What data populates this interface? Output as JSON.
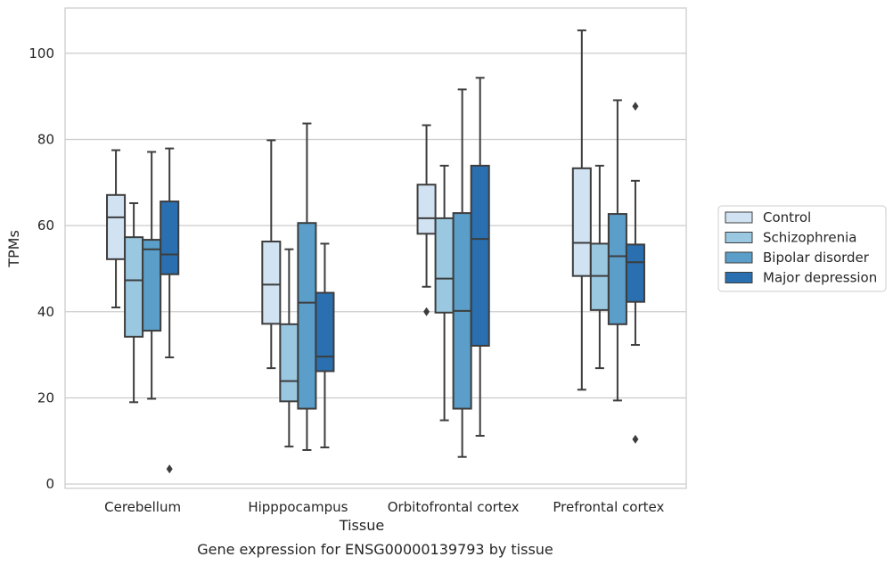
{
  "caption": "Gene expression for ENSG00000139793 by tissue",
  "chart_data": {
    "type": "box",
    "title": "",
    "xlabel": "Tissue",
    "ylabel": "TPMs",
    "ylim": [
      -1,
      110.5
    ],
    "yticks": [
      0,
      20,
      40,
      60,
      80,
      100
    ],
    "grid": true,
    "legend_position": "right",
    "categories": [
      "Cerebellum",
      "Hipppocampus",
      "Orbitofrontal cortex",
      "Prefrontal cortex"
    ],
    "series": [
      {
        "name": "Control",
        "color": "#d1e2f2",
        "boxes": [
          {
            "whisker_low": 41,
            "q1": 52.2,
            "median": 61.9,
            "q3": 67.1,
            "whisker_high": 77.5,
            "outliers": []
          },
          {
            "whisker_low": 26.9,
            "q1": 37.2,
            "median": 46.3,
            "q3": 56.3,
            "whisker_high": 79.8,
            "outliers": []
          },
          {
            "whisker_low": 45.8,
            "q1": 58.1,
            "median": 61.7,
            "q3": 69.5,
            "whisker_high": 83.3,
            "outliers": [
              40
            ]
          },
          {
            "whisker_low": 21.9,
            "q1": 48.3,
            "median": 56.0,
            "q3": 73.3,
            "whisker_high": 105.3,
            "outliers": []
          }
        ]
      },
      {
        "name": "Schizophrenia",
        "color": "#9ac8e0",
        "boxes": [
          {
            "whisker_low": 19.0,
            "q1": 34.2,
            "median": 47.3,
            "q3": 57.3,
            "whisker_high": 65.2,
            "outliers": []
          },
          {
            "whisker_low": 8.7,
            "q1": 19.2,
            "median": 23.9,
            "q3": 37.1,
            "whisker_high": 54.5,
            "outliers": []
          },
          {
            "whisker_low": 14.8,
            "q1": 39.8,
            "median": 47.7,
            "q3": 61.7,
            "whisker_high": 73.9,
            "outliers": []
          },
          {
            "whisker_low": 26.9,
            "q1": 40.4,
            "median": 48.3,
            "q3": 55.8,
            "whisker_high": 73.9,
            "outliers": []
          }
        ]
      },
      {
        "name": "Bipolar disorder",
        "color": "#5a9ec9",
        "boxes": [
          {
            "whisker_low": 19.8,
            "q1": 35.6,
            "median": 54.5,
            "q3": 56.7,
            "whisker_high": 77.1,
            "outliers": []
          },
          {
            "whisker_low": 7.9,
            "q1": 17.5,
            "median": 42.1,
            "q3": 60.6,
            "whisker_high": 83.7,
            "outliers": []
          },
          {
            "whisker_low": 6.3,
            "q1": 17.5,
            "median": 40.2,
            "q3": 62.9,
            "whisker_high": 91.6,
            "outliers": []
          },
          {
            "whisker_low": 19.4,
            "q1": 37.1,
            "median": 52.9,
            "q3": 62.7,
            "whisker_high": 89.1,
            "outliers": []
          }
        ]
      },
      {
        "name": "Major depression",
        "color": "#2a6fb0",
        "boxes": [
          {
            "whisker_low": 29.4,
            "q1": 48.7,
            "median": 53.3,
            "q3": 65.6,
            "whisker_high": 77.9,
            "outliers": [
              3.5
            ]
          },
          {
            "whisker_low": 8.5,
            "q1": 26.2,
            "median": 29.6,
            "q3": 44.4,
            "whisker_high": 55.8,
            "outliers": []
          },
          {
            "whisker_low": 11.2,
            "q1": 32.1,
            "median": 56.9,
            "q3": 73.9,
            "whisker_high": 94.3,
            "outliers": []
          },
          {
            "whisker_low": 32.3,
            "q1": 42.3,
            "median": 51.5,
            "q3": 55.6,
            "whisker_high": 70.4,
            "outliers": [
              87.7,
              10.4
            ]
          }
        ]
      }
    ]
  }
}
